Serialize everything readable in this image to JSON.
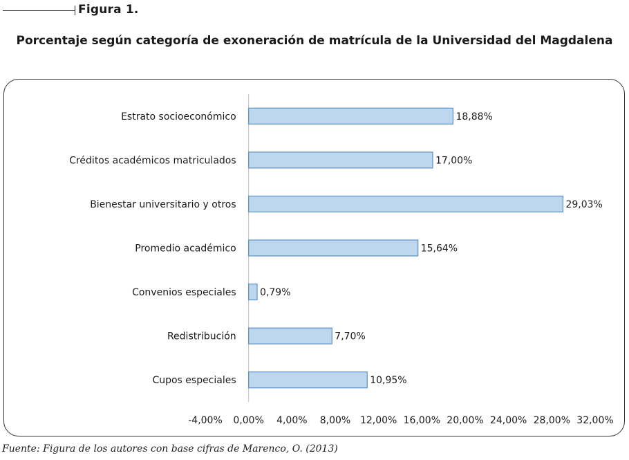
{
  "figure_label": "Figura 1.",
  "title": "Porcentaje según categoría de exoneración de matrícula de la Universidad del Magdalena",
  "source": "Fuente: Figura de los autores con base cifras de Marenco, O. (2013)",
  "chart_data": {
    "type": "bar",
    "orientation": "horizontal",
    "categories": [
      "Estrato socioeconómico",
      "Créditos académicos matriculados",
      "Bienestar universitario y otros",
      "Promedio académico",
      "Convenios especiales",
      "Redistribución",
      "Cupos especiales"
    ],
    "values": [
      18.88,
      17.0,
      29.03,
      15.64,
      0.79,
      7.7,
      10.95
    ],
    "data_labels": [
      "18,88%",
      "17,00%",
      "29,03%",
      "15,64%",
      "0,79%",
      "7,70%",
      "10,95%"
    ],
    "xlim": [
      -4,
      32
    ],
    "x_ticks": [
      -4,
      0,
      4,
      8,
      12,
      16,
      20,
      24,
      28,
      32
    ],
    "x_tick_labels": [
      "-4,00%",
      "0,00%",
      "4,00%",
      "8,00%",
      "12,00%",
      "16,00%",
      "20,00%",
      "24,00%",
      "28,00%",
      "32,00%"
    ],
    "grid": false,
    "legend": "none",
    "bar_color": "#bdd7ee",
    "bar_edge_color": "#5b8fc7",
    "axis_color": "#c0c0c0"
  }
}
